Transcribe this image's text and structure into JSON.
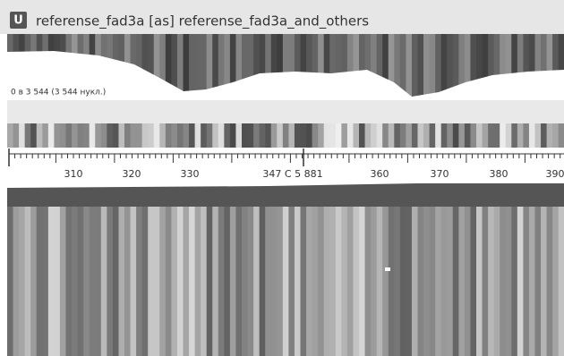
{
  "window": {
    "icon": "U",
    "title": "referense_fad3a [as] referense_fad3a_and_others"
  },
  "coverage": {
    "range_label": "0 в 3 544 (3 544 нукл.)"
  },
  "ruler": {
    "labels": [
      "310",
      "320",
      "330",
      "347 C 5 881",
      "360",
      "370",
      "380",
      "390"
    ]
  }
}
